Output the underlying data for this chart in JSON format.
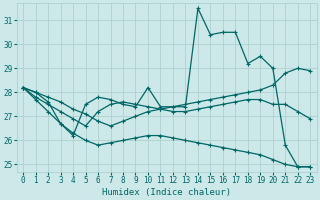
{
  "title": "",
  "xlabel": "Humidex (Indice chaleur)",
  "ylabel": "",
  "xlim": [
    -0.5,
    23.5
  ],
  "ylim": [
    24.7,
    31.7
  ],
  "xticks": [
    0,
    1,
    2,
    3,
    4,
    5,
    6,
    7,
    8,
    9,
    10,
    11,
    12,
    13,
    14,
    15,
    16,
    17,
    18,
    19,
    20,
    21,
    22,
    23
  ],
  "yticks": [
    25,
    26,
    27,
    28,
    29,
    30,
    31
  ],
  "bg_color": "#cde8e8",
  "grid_color": "#aacccc",
  "line_color": "#006666",
  "line_width": 0.9,
  "marker": "+",
  "marker_size": 3,
  "marker_lw": 0.8,
  "series1": [
    28.2,
    28.0,
    27.6,
    26.7,
    26.2,
    27.5,
    27.8,
    27.7,
    27.5,
    27.4,
    28.2,
    27.4,
    27.4,
    27.4,
    31.5,
    30.4,
    30.5,
    30.5,
    29.2,
    29.5,
    29.0,
    25.8,
    24.9,
    24.9
  ],
  "series2": [
    28.2,
    27.8,
    27.5,
    27.2,
    26.9,
    26.6,
    27.2,
    27.5,
    27.6,
    27.5,
    27.4,
    27.3,
    27.2,
    27.2,
    27.3,
    27.4,
    27.5,
    27.6,
    27.7,
    27.7,
    27.5,
    27.5,
    27.2,
    26.9
  ],
  "series3": [
    28.2,
    28.0,
    27.8,
    27.6,
    27.3,
    27.1,
    26.8,
    26.6,
    26.8,
    27.0,
    27.2,
    27.3,
    27.4,
    27.5,
    27.6,
    27.7,
    27.8,
    27.9,
    28.0,
    28.1,
    28.3,
    28.8,
    29.0,
    28.9
  ],
  "series4": [
    28.2,
    27.7,
    27.2,
    26.7,
    26.3,
    26.0,
    25.8,
    25.9,
    26.0,
    26.1,
    26.2,
    26.2,
    26.1,
    26.0,
    25.9,
    25.8,
    25.7,
    25.6,
    25.5,
    25.4,
    25.2,
    25.0,
    24.9,
    24.9
  ]
}
